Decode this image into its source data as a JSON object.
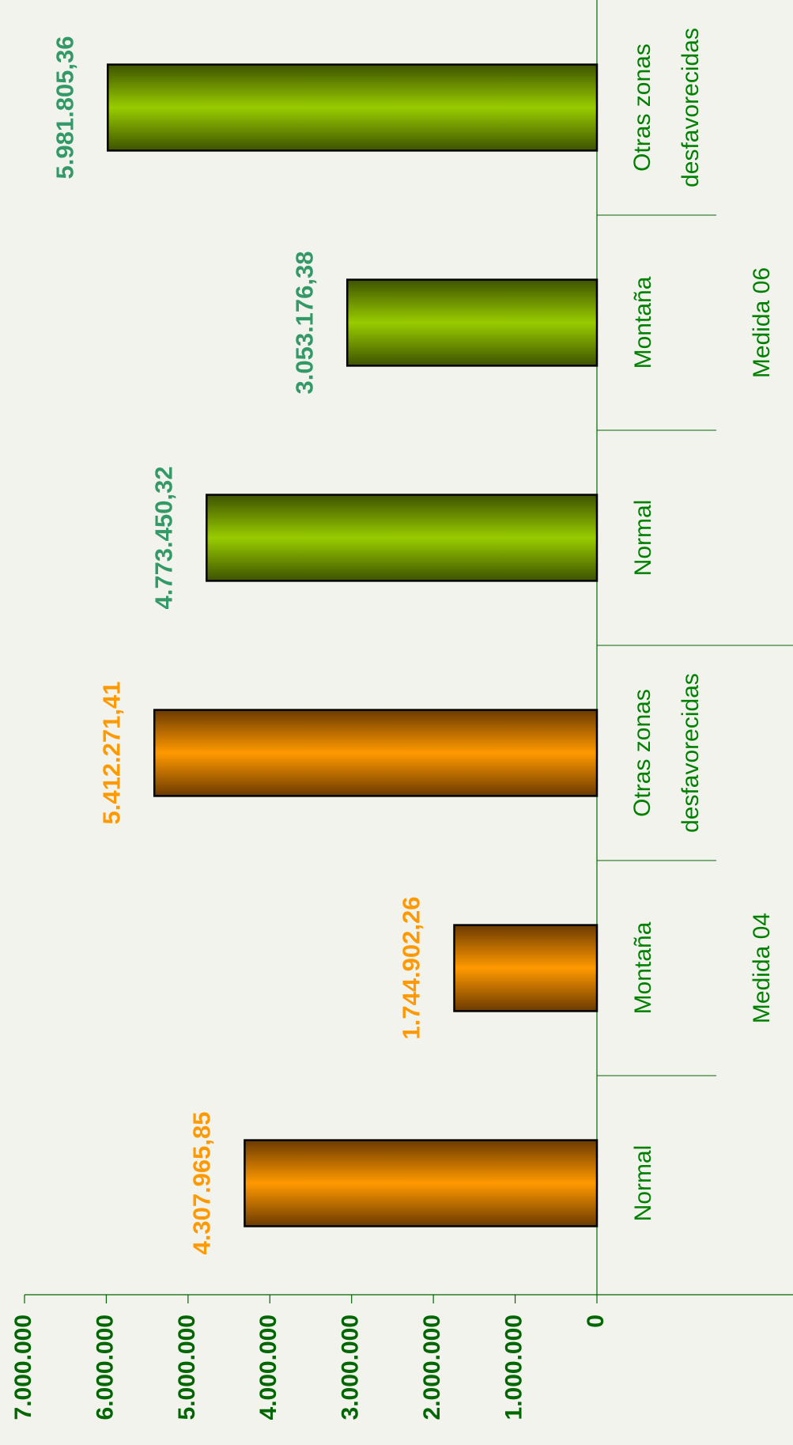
{
  "chart_data": {
    "type": "bar",
    "groups": [
      {
        "name": "Medida 04",
        "color": "#ff9900",
        "edge": "#6b3a00",
        "label_color": "#ff9900",
        "categories": [
          "Normal",
          "Montaña",
          "Otras zonas desfavorecidas"
        ],
        "values": [
          4307965.85,
          1744902.26,
          5412271.41
        ],
        "value_labels": [
          "4.307.965,85",
          "1.744.902,26",
          "5.412.271,41"
        ]
      },
      {
        "name": "Medida 06",
        "color": "#99cc00",
        "edge": "#3d5200",
        "label_color": "#339966",
        "categories": [
          "Normal",
          "Montaña",
          "Otras zonas desfavorecidas"
        ],
        "values": [
          4773450.32,
          3053176.38,
          5981805.36
        ],
        "value_labels": [
          "4.773.450,32",
          "3.053.176,38",
          "5.981.805,36"
        ]
      }
    ],
    "ylim": [
      0,
      7000000
    ],
    "yticks": [
      0,
      {
        "value": 1000000,
        "label": "1.000.000"
      },
      {
        "value": 2000000,
        "label": "2.000.000"
      },
      {
        "value": 3000000,
        "label": "3.000.000"
      },
      {
        "value": 4000000,
        "label": "4.000.000"
      },
      {
        "value": 5000000,
        "label": "5.000.000"
      },
      {
        "value": 6000000,
        "label": "6.000.000"
      },
      {
        "value": 7000000,
        "label": "7.000.000"
      }
    ],
    "orientation": "horizontal-rotated"
  }
}
